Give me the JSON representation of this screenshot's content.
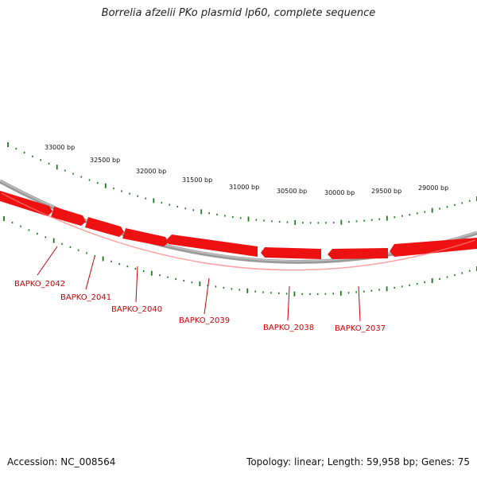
{
  "title": "Borrelia afzelii PKo plasmid lp60, complete sequence",
  "accession": "Accession: NC_008564",
  "summary": "Topology: linear; Length: 59,958 bp; Genes: 75",
  "colors": {
    "backbone": "#8a8a8a",
    "gene": "#ee1111",
    "gene_label": "#cc0000",
    "tick": "#1a7a1a"
  },
  "scale_labels": [
    "33000 bp",
    "32500 bp",
    "32000 bp",
    "31500 bp",
    "31000 bp",
    "30500 bp",
    "30000 bp",
    "29500 bp",
    "29000 bp"
  ],
  "genes": [
    {
      "name": "BAPKO_2042"
    },
    {
      "name": "BAPKO_2041"
    },
    {
      "name": "BAPKO_2040"
    },
    {
      "name": "BAPKO_2039"
    },
    {
      "name": "BAPKO_2038"
    },
    {
      "name": "BAPKO_2037"
    }
  ]
}
